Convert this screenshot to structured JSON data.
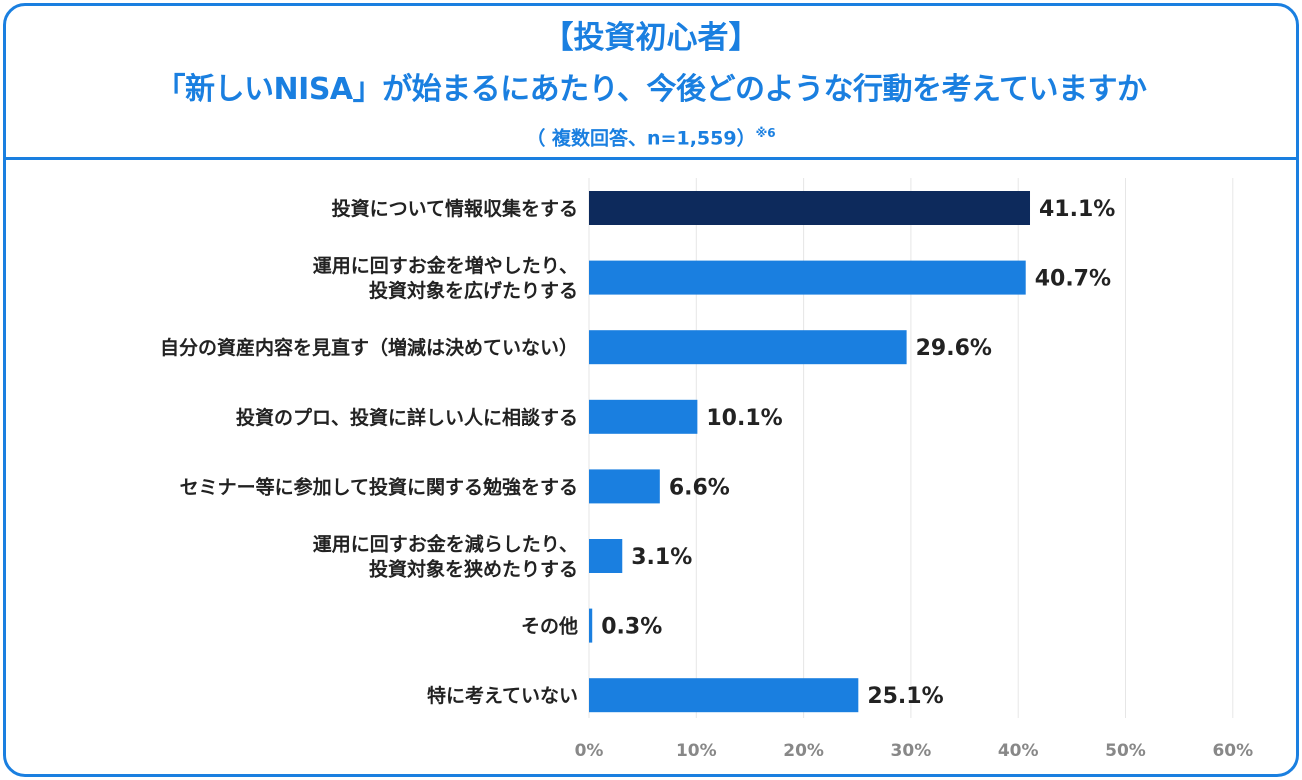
{
  "title": {
    "line1": "【投資初心者】",
    "line2": "「新しいNISA」が始まるにあたり、今後どのような行動を考えていますか",
    "line3": "（ 複数回答、n=1,559）",
    "note": "※6"
  },
  "colors": {
    "accent": "#1a7fe0",
    "bar": "#1a7fe0",
    "highlight_bar": "#0d2a5c",
    "grid": "#e6e6e6",
    "text": "#222222",
    "tick": "#888888"
  },
  "chart_data": {
    "type": "bar",
    "orientation": "horizontal",
    "categories": [
      [
        "投資について情報収集をする"
      ],
      [
        "運用に回すお金を増やしたり、",
        "投資対象を広げたりする"
      ],
      [
        "自分の資産内容を見直す（増減は決めていない）"
      ],
      [
        "投資のプロ、投資に詳しい人に相談する"
      ],
      [
        "セミナー等に参加して投資に関する勉強をする"
      ],
      [
        "運用に回すお金を減らしたり、",
        "投資対象を狭めたりする"
      ],
      [
        "その他"
      ],
      [
        "特に考えていない"
      ]
    ],
    "values": [
      41.1,
      40.7,
      29.6,
      10.1,
      6.6,
      3.1,
      0.3,
      25.1
    ],
    "value_labels": [
      "41.1%",
      "40.7%",
      "29.6%",
      "10.1%",
      "6.6%",
      "3.1%",
      "0.3%",
      "25.1%"
    ],
    "highlight_index": 0,
    "xlim": [
      0,
      60
    ],
    "xticks": [
      0,
      10,
      20,
      30,
      40,
      50,
      60
    ],
    "xtick_labels": [
      "0%",
      "10%",
      "20%",
      "30%",
      "40%",
      "50%",
      "60%"
    ],
    "grid": true,
    "xlabel": "",
    "ylabel": ""
  }
}
